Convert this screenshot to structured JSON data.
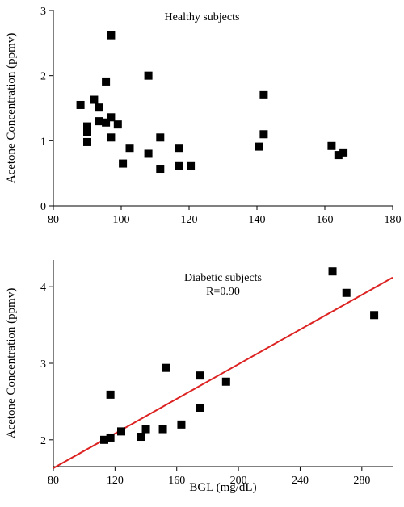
{
  "chart_data": [
    {
      "type": "scatter",
      "title": "",
      "annotations": [
        "Healthy subjects"
      ],
      "xlabel": "",
      "ylabel": "Acetone Concentration (ppmv)",
      "xlim": [
        80,
        180
      ],
      "ylim": [
        0,
        3
      ],
      "xticks": [
        "80",
        "100",
        "120",
        "140",
        "160",
        "180"
      ],
      "yticks": [
        "0",
        "1",
        "2",
        "3"
      ],
      "grid": false,
      "legend": "none",
      "marker_color": "#000000",
      "points": [
        {
          "x": 88,
          "y": 1.55
        },
        {
          "x": 90,
          "y": 1.22
        },
        {
          "x": 90,
          "y": 1.14
        },
        {
          "x": 90,
          "y": 0.98
        },
        {
          "x": 92,
          "y": 1.63
        },
        {
          "x": 93.5,
          "y": 1.51
        },
        {
          "x": 93.5,
          "y": 1.3
        },
        {
          "x": 95.5,
          "y": 1.91
        },
        {
          "x": 95.5,
          "y": 1.28
        },
        {
          "x": 97,
          "y": 2.62
        },
        {
          "x": 97,
          "y": 1.36
        },
        {
          "x": 97,
          "y": 1.05
        },
        {
          "x": 99,
          "y": 1.25
        },
        {
          "x": 100.5,
          "y": 0.65
        },
        {
          "x": 102.5,
          "y": 0.89
        },
        {
          "x": 108,
          "y": 2.0
        },
        {
          "x": 108,
          "y": 0.8
        },
        {
          "x": 111.5,
          "y": 1.05
        },
        {
          "x": 111.5,
          "y": 0.57
        },
        {
          "x": 117,
          "y": 0.89
        },
        {
          "x": 117,
          "y": 0.61
        },
        {
          "x": 120.5,
          "y": 0.61
        },
        {
          "x": 140.5,
          "y": 0.91
        },
        {
          "x": 142,
          "y": 1.7
        },
        {
          "x": 142,
          "y": 1.1
        },
        {
          "x": 162,
          "y": 0.92
        },
        {
          "x": 164,
          "y": 0.78
        },
        {
          "x": 165.5,
          "y": 0.82
        }
      ]
    },
    {
      "type": "scatter",
      "title": "",
      "annotations": [
        "Diabetic subjects",
        "R=0.90"
      ],
      "xlabel": "BGL (mg/dL)",
      "ylabel": "Acetone Concentration (ppmv)",
      "xlim": [
        80,
        300
      ],
      "ylim": [
        1.65,
        4.35
      ],
      "xticks": [
        "80",
        "120",
        "160",
        "200",
        "240",
        "280"
      ],
      "yticks": [
        "2",
        "3",
        "4"
      ],
      "grid": false,
      "legend": "none",
      "marker_color": "#000000",
      "fit_line": {
        "color": "#dd2222",
        "x": [
          80,
          300
        ],
        "y": [
          1.63,
          4.12
        ]
      },
      "points": [
        {
          "x": 113,
          "y": 2.0
        },
        {
          "x": 117,
          "y": 2.03
        },
        {
          "x": 117,
          "y": 2.59
        },
        {
          "x": 124,
          "y": 2.11
        },
        {
          "x": 137,
          "y": 2.04
        },
        {
          "x": 140,
          "y": 2.14
        },
        {
          "x": 151,
          "y": 2.14
        },
        {
          "x": 153,
          "y": 2.94
        },
        {
          "x": 163,
          "y": 2.2
        },
        {
          "x": 175,
          "y": 2.84
        },
        {
          "x": 175,
          "y": 2.42
        },
        {
          "x": 192,
          "y": 2.76
        },
        {
          "x": 261,
          "y": 4.2
        },
        {
          "x": 270,
          "y": 3.92
        },
        {
          "x": 288,
          "y": 3.63
        }
      ]
    }
  ]
}
